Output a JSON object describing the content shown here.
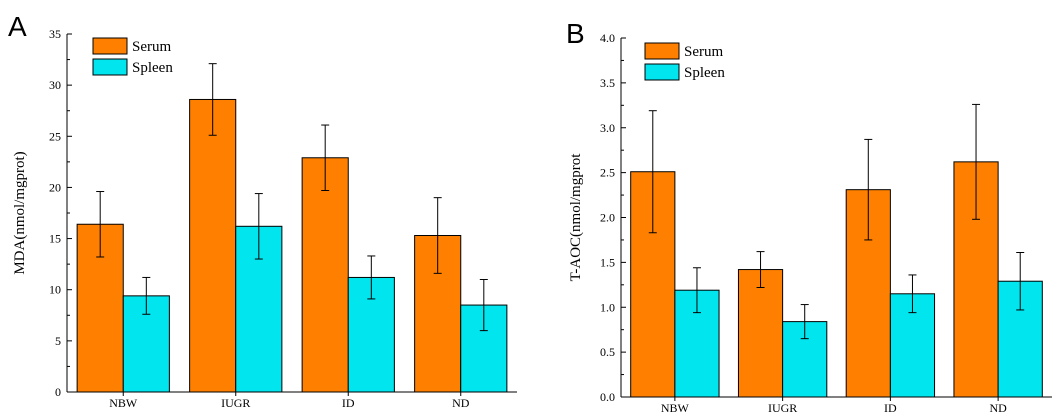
{
  "chart_data": [
    {
      "type": "bar",
      "panel_label": "A",
      "categories": [
        "NBW",
        "IUGR",
        "ID",
        "ND"
      ],
      "series": [
        {
          "name": "Serum",
          "color": "#FF8000",
          "values": [
            16.4,
            28.6,
            22.9,
            15.3
          ],
          "errors": [
            3.2,
            3.5,
            3.2,
            3.7
          ]
        },
        {
          "name": "Spleen",
          "color": "#00E5EE",
          "values": [
            9.4,
            16.2,
            11.2,
            8.5
          ],
          "errors": [
            1.8,
            3.2,
            2.1,
            2.5
          ]
        }
      ],
      "ylabel": "MDA(nmol/mgprot)",
      "ylim": [
        0,
        35
      ],
      "yticks": [
        0,
        5,
        10,
        15,
        20,
        25,
        30,
        35
      ],
      "ytick_labels": [
        "0",
        "5",
        "10",
        "15",
        "20",
        "25",
        "30",
        "35"
      ],
      "legend_position": "top-left",
      "grid": false
    },
    {
      "type": "bar",
      "panel_label": "B",
      "categories": [
        "NBW",
        "IUGR",
        "ID",
        "ND"
      ],
      "series": [
        {
          "name": "Serum",
          "color": "#FF8000",
          "values": [
            2.51,
            1.42,
            2.31,
            2.62
          ],
          "errors": [
            0.68,
            0.2,
            0.56,
            0.64
          ]
        },
        {
          "name": "Spleen",
          "color": "#00E5EE",
          "values": [
            1.19,
            0.84,
            1.15,
            1.29
          ],
          "errors": [
            0.25,
            0.19,
            0.21,
            0.32
          ]
        }
      ],
      "ylabel": "T-AOC(nmol/mgprot",
      "ylim": [
        0,
        4.0
      ],
      "yticks": [
        0,
        0.5,
        1.0,
        1.5,
        2.0,
        2.5,
        3.0,
        3.5,
        4.0
      ],
      "ytick_labels": [
        "0.0",
        "0.5",
        "1.0",
        "1.5",
        "2.0",
        "2.5",
        "3.0",
        "3.5",
        "4.0"
      ],
      "legend_position": "top-left",
      "grid": false
    }
  ]
}
